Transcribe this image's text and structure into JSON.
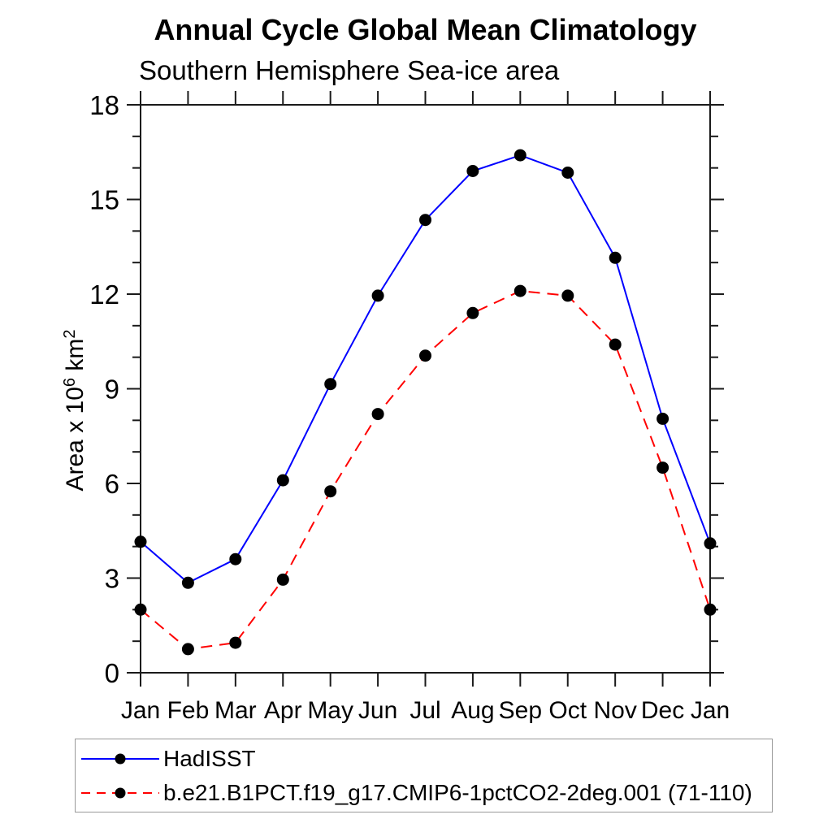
{
  "chart_data": {
    "type": "line",
    "title": "Annual Cycle Global Mean Climatology",
    "subtitle": "Southern Hemisphere Sea-ice area",
    "ylabel": "Area x 10^6 km^2",
    "ylabel_parts": {
      "prefix": "Area x 10",
      "sup1": "6",
      "mid": " km",
      "sup2": "2"
    },
    "categories": [
      "Jan",
      "Feb",
      "Mar",
      "Apr",
      "May",
      "Jun",
      "Jul",
      "Aug",
      "Sep",
      "Oct",
      "Nov",
      "Dec",
      "Jan"
    ],
    "ylim": [
      0,
      18
    ],
    "ytick_major_step": 3,
    "ytick_minor_step": 1,
    "grid": false,
    "legend_position": "bottom-left-box",
    "axis_color": "#1a1a1a",
    "marker_shape": "filled-circle",
    "series": [
      {
        "name": "HadISST",
        "color": "#0000ff",
        "line_style": "solid",
        "marker_color": "#000000",
        "values": [
          4.15,
          2.85,
          3.6,
          6.1,
          9.15,
          11.95,
          14.35,
          15.9,
          16.4,
          15.85,
          13.15,
          8.05,
          4.1
        ]
      },
      {
        "name": "b.e21.B1PCT.f19_g17.CMIP6-1pctCO2-2deg.001 (71-110)",
        "color": "#ff0000",
        "line_style": "dashed",
        "marker_color": "#000000",
        "values": [
          2.0,
          0.75,
          0.95,
          2.95,
          5.75,
          8.2,
          10.05,
          11.4,
          12.1,
          11.95,
          10.4,
          6.5,
          2.0
        ]
      }
    ]
  }
}
